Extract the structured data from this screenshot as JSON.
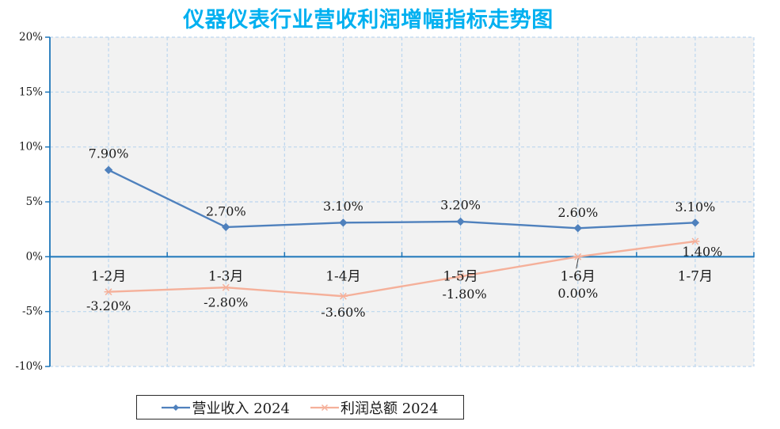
{
  "title": "仪器仪表行业营收利润增幅指标走势图",
  "colors": {
    "title": "#00b0f0",
    "axis": "#1d76ba",
    "grid": "#bcd6ee",
    "plot_bg": "#f2f2f2",
    "text": "#1a1a1a",
    "leader_line": "#404040",
    "legend_border": "#2b2b2b",
    "series_revenue": "#4f81bd",
    "series_profit": "#f5b09a"
  },
  "legend": {
    "items": [
      {
        "label": "营业收入 2024",
        "marker": "diamond-icon"
      },
      {
        "label": "利润总额 2024",
        "marker": "asterisk-icon"
      }
    ]
  },
  "chart_data": {
    "type": "line",
    "title": "仪器仪表行业营收利润增幅指标走势图",
    "categories": [
      "1-2月",
      "1-3月",
      "1-4月",
      "1-5月",
      "1-6月",
      "1-7月"
    ],
    "series": [
      {
        "id": "revenue",
        "name": "营业收入 2024",
        "color": "#4f81bd",
        "marker": "diamond",
        "values": [
          7.9,
          2.7,
          3.1,
          3.2,
          2.6,
          3.1
        ],
        "labels": [
          "7.90%",
          "2.70%",
          "3.10%",
          "3.20%",
          "2.60%",
          "3.10%"
        ],
        "label_offsets": [
          [
            0,
            -21
          ],
          [
            0,
            -20
          ],
          [
            0,
            -21
          ],
          [
            0,
            -21
          ],
          [
            0,
            -20
          ],
          [
            0,
            -20
          ]
        ],
        "leader_lines": []
      },
      {
        "id": "profit",
        "name": "利润总额 2024",
        "color": "#f5b09a",
        "marker": "asterisk",
        "values": [
          -3.2,
          -2.8,
          -3.6,
          -1.8,
          0.0,
          1.4
        ],
        "labels": [
          "-3.20%",
          "-2.80%",
          "-3.60%",
          "-1.80%",
          "0.00%",
          "1.40%"
        ],
        "label_offsets": [
          [
            0,
            18
          ],
          [
            0,
            19
          ],
          [
            0,
            20
          ],
          [
            5,
            22
          ],
          [
            0,
            46
          ],
          [
            9,
            13
          ]
        ],
        "leader_lines": [
          4
        ]
      }
    ],
    "ylim": [
      -10,
      20
    ],
    "ytick_step": 5,
    "ytick_labels": [
      "20%",
      "15%",
      "10%",
      "5%",
      "0%",
      "-5%",
      "-10%"
    ],
    "xlabel": "",
    "ylabel": "",
    "grid": true,
    "grid_style": "dashed",
    "legend_position": "bottom"
  }
}
